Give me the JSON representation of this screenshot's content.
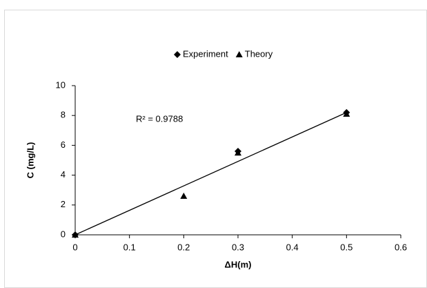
{
  "chart_data": {
    "type": "scatter",
    "x_label": "ΔH(m)",
    "y_label": "C (mg/L)",
    "annotation": "R² = 0.9788",
    "series": [
      {
        "name": "Experiment",
        "color": "#000000",
        "marker": "diamond",
        "x": [
          0,
          0.3,
          0.5
        ],
        "values": [
          0,
          5.6,
          8.2
        ]
      },
      {
        "name": "Theory",
        "color": "#000000",
        "marker": "triangle",
        "x": [
          0,
          0.2,
          0.3,
          0.5
        ],
        "values": [
          0,
          2.6,
          5.5,
          8.1
        ]
      }
    ],
    "trendline": {
      "x": [
        0,
        0.5
      ],
      "values": [
        0,
        8.2
      ],
      "color": "#000000"
    },
    "xlim": [
      0,
      0.6
    ],
    "xticks": [
      0,
      0.1,
      0.2,
      0.3,
      0.4,
      0.5,
      0.6
    ],
    "ylim": [
      0,
      10
    ],
    "yticks": [
      0,
      2,
      4,
      6,
      8,
      10
    ],
    "legend": "top"
  }
}
